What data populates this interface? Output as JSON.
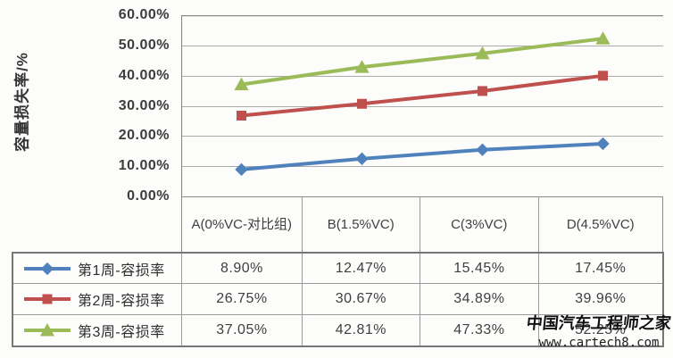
{
  "chart_data": {
    "type": "line",
    "title": "",
    "xlabel": "",
    "ylabel": "容量损失率/%",
    "ylim": [
      0,
      60
    ],
    "ytick_step": 10,
    "ytick_labels": [
      "60.00%",
      "50.00%",
      "40.00%",
      "30.00%",
      "20.00%",
      "10.00%",
      "0.00%"
    ],
    "grid": true,
    "legend_position": "table-left",
    "categories": [
      "A(0%VC-对比组)",
      "B(1.5%VC)",
      "C(3%VC)",
      "D(4.5%VC)"
    ],
    "series": [
      {
        "name": "第1周-容损率",
        "marker": "diamond",
        "color": "#4F81BD",
        "values": [
          8.9,
          12.47,
          15.45,
          17.45
        ]
      },
      {
        "name": "第2周-容损率",
        "marker": "square",
        "color": "#C0504D",
        "values": [
          26.75,
          30.67,
          34.89,
          39.96
        ]
      },
      {
        "name": "第3周-容损率",
        "marker": "triangle",
        "color": "#9BBB59",
        "values": [
          37.05,
          42.81,
          47.33,
          52.25
        ]
      }
    ]
  },
  "axis": {
    "y_title": "容量损失率/%",
    "y_ticks": [
      "60.00%",
      "50.00%",
      "40.00%",
      "30.00%",
      "20.00%",
      "10.00%",
      "0.00%"
    ]
  },
  "table": {
    "column_headers": [
      "A(0%VC-对比组)",
      "B(1.5%VC)",
      "C(3%VC)",
      "D(4.5%VC)"
    ],
    "rows": [
      {
        "label": "第1周-容损率",
        "marker": "diamond",
        "color": "#4F81BD",
        "values": [
          "8.90%",
          "12.47%",
          "15.45%",
          "17.45%"
        ]
      },
      {
        "label": "第2周-容损率",
        "marker": "square",
        "color": "#C0504D",
        "values": [
          "26.75%",
          "30.67%",
          "34.89%",
          "39.96%"
        ]
      },
      {
        "label": "第3周-容损率",
        "marker": "triangle",
        "color": "#9BBB59",
        "values": [
          "37.05%",
          "42.81%",
          "47.33%",
          "52.25%"
        ]
      }
    ]
  },
  "watermark": {
    "line1": "中国汽车工程师之家",
    "line2": "www.cartech8.com"
  },
  "style": {
    "gridline_color": "#ababab",
    "axis_color": "#8a8a8a",
    "text_color": "#3f3f3f"
  }
}
